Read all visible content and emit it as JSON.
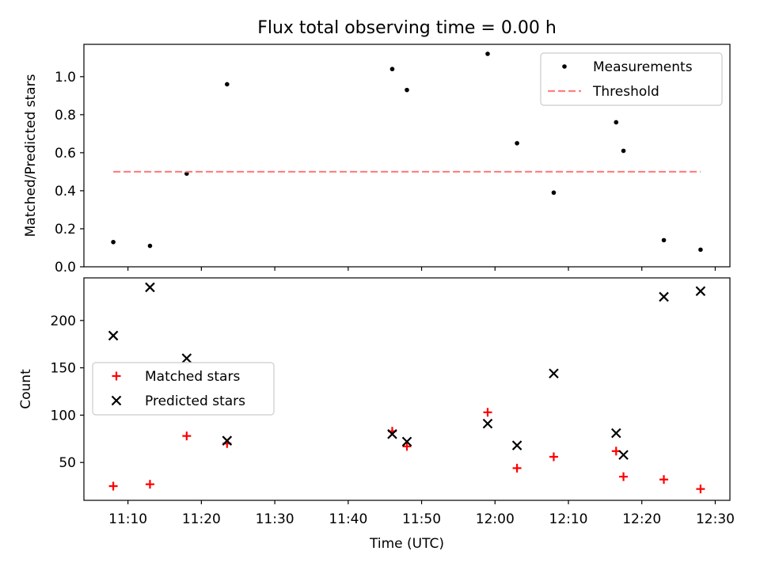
{
  "figure": {
    "title": "Flux total observing time = 0.00 h"
  },
  "chart_data": [
    {
      "type": "scatter",
      "title": "Flux total observing time = 0.00 h",
      "xlabel": "",
      "ylabel": "Matched/Predicted stars",
      "xlim": [
        "11:04",
        "12:32"
      ],
      "ylim": [
        0,
        1.17
      ],
      "x_ticks": [
        "11:10",
        "11:20",
        "11:30",
        "11:40",
        "11:50",
        "12:00",
        "12:10",
        "12:20",
        "12:30"
      ],
      "y_ticks": [
        0.0,
        0.2,
        0.4,
        0.6,
        0.8,
        1.0
      ],
      "y_tick_labels": [
        "0.0",
        "0.2",
        "0.4",
        "0.6",
        "0.8",
        "1.0"
      ],
      "legend_position": "top-right",
      "series": [
        {
          "name": "Measurements",
          "style": "dot",
          "color": "#000000",
          "x": [
            "11:08",
            "11:13",
            "11:18",
            "11:23:30",
            "11:46",
            "11:48",
            "11:59",
            "12:03",
            "12:08",
            "12:16:30",
            "12:17:30",
            "12:23",
            "12:28"
          ],
          "y": [
            0.13,
            0.11,
            0.49,
            0.96,
            1.04,
            0.93,
            1.12,
            0.65,
            0.39,
            0.76,
            0.61,
            0.14,
            0.09
          ]
        },
        {
          "name": "Threshold",
          "style": "dashed-line",
          "color": "#ff7f7f",
          "x": [
            "11:08",
            "12:28"
          ],
          "y": [
            0.5,
            0.5
          ]
        }
      ]
    },
    {
      "type": "scatter",
      "title": "",
      "xlabel": "Time (UTC)",
      "ylabel": "Count",
      "xlim": [
        "11:04",
        "12:32"
      ],
      "ylim": [
        10,
        245
      ],
      "x_ticks": [
        "11:10",
        "11:20",
        "11:30",
        "11:40",
        "11:50",
        "12:00",
        "12:10",
        "12:20",
        "12:30"
      ],
      "y_ticks": [
        50,
        100,
        150,
        200
      ],
      "y_tick_labels": [
        "50",
        "100",
        "150",
        "200"
      ],
      "legend_position": "center-left",
      "series": [
        {
          "name": "Matched stars",
          "style": "plus",
          "color": "#ff0000",
          "x": [
            "11:08",
            "11:13",
            "11:18",
            "11:23:30",
            "11:46",
            "11:48",
            "11:59",
            "12:03",
            "12:08",
            "12:16:30",
            "12:17:30",
            "12:23",
            "12:28"
          ],
          "y": [
            25,
            27,
            78,
            70,
            83,
            67,
            103,
            44,
            56,
            62,
            35,
            32,
            22
          ]
        },
        {
          "name": "Predicted stars",
          "style": "x",
          "color": "#000000",
          "x": [
            "11:08",
            "11:13",
            "11:18",
            "11:23:30",
            "11:46",
            "11:48",
            "11:59",
            "12:03",
            "12:08",
            "12:16:30",
            "12:17:30",
            "12:23",
            "12:28"
          ],
          "y": [
            184,
            235,
            160,
            73,
            80,
            72,
            91,
            68,
            144,
            81,
            58,
            225,
            231
          ]
        }
      ]
    }
  ]
}
